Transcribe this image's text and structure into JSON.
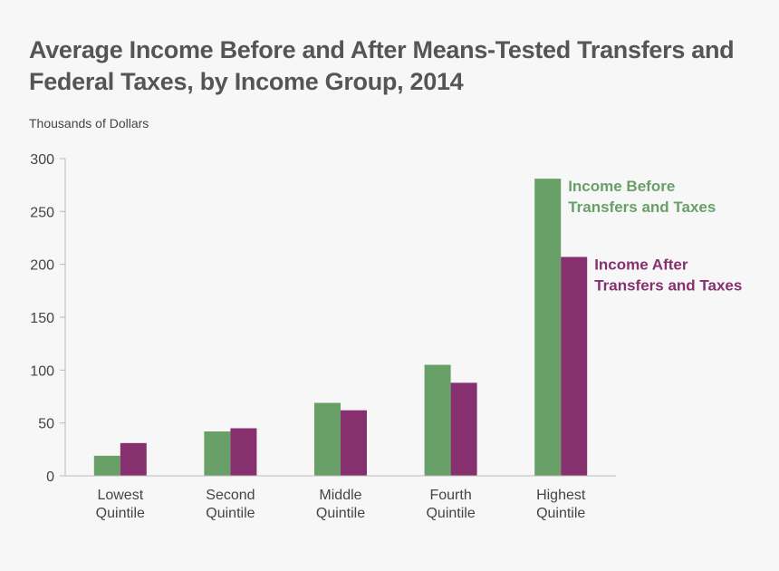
{
  "title": "Average Income Before and After Means-Tested Transfers and Federal Taxes, by Income Group, 2014",
  "ylabel": "Thousands of Dollars",
  "chart_data": {
    "type": "bar",
    "title": "Average Income Before and After Means-Tested Transfers and Federal Taxes, by Income Group, 2014",
    "xlabel": "",
    "ylabel": "Thousands of Dollars",
    "ylim": [
      0,
      300
    ],
    "yticks": [
      0,
      50,
      100,
      150,
      200,
      250,
      300
    ],
    "grid": false,
    "categories": [
      [
        "Lowest",
        "Quintile"
      ],
      [
        "Second",
        "Quintile"
      ],
      [
        "Middle",
        "Quintile"
      ],
      [
        "Fourth",
        "Quintile"
      ],
      [
        "Highest",
        "Quintile"
      ]
    ],
    "series": [
      {
        "name": "Income Before Transfers and Taxes",
        "label_lines": [
          "Income Before",
          "Transfers and Taxes"
        ],
        "color": "#68a068",
        "values": [
          19,
          42,
          69,
          105,
          281
        ]
      },
      {
        "name": "Income After Transfers and Taxes",
        "label_lines": [
          "Income After",
          "Transfers and Taxes"
        ],
        "color": "#87306f",
        "values": [
          31,
          45,
          62,
          88,
          207
        ]
      }
    ],
    "legend": "labels beside tallest bars (right of highest quintile)"
  }
}
